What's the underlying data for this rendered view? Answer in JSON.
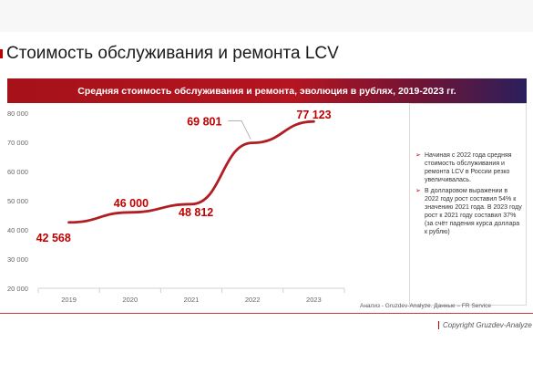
{
  "page": {
    "title": "Стоимость обслуживания и ремонта LCV",
    "banner": "Средняя стоимость обслуживания и ремонта, эволюция в рублях, 2019-2023 гг.",
    "source": "Анализ - Gruzdev-Analyze. Данные – FR Service",
    "copyright": "Copyright Gruzdev-Analyze"
  },
  "notes": [
    "Начиная с 2022 года средняя стоимость обслуживания и ремонта LCV в России резко увеличивалась.",
    "В долларовом выражении в 2022 году рост составил 54% к значению 2021 года. В 2023 году рост к 2021 году составил 37% (за счёт падения курса доллара к рублю)"
  ],
  "colors": {
    "accent": "#b01e23",
    "label": "#c00000"
  },
  "chart_data": {
    "type": "line",
    "categories": [
      "2019",
      "2020",
      "2021",
      "2022",
      "2023"
    ],
    "series": [
      {
        "values": [
          42568,
          46000,
          48812,
          69801,
          77123
        ]
      }
    ],
    "data_labels": [
      "42 568",
      "46 000",
      "48 812",
      "69 801",
      "77 123"
    ],
    "y_ticks": [
      "20 000",
      "30 000",
      "40 000",
      "50 000",
      "60 000",
      "70 000",
      "80 000"
    ],
    "ylim": [
      20000,
      80000
    ],
    "smooth": true,
    "grid": false
  }
}
